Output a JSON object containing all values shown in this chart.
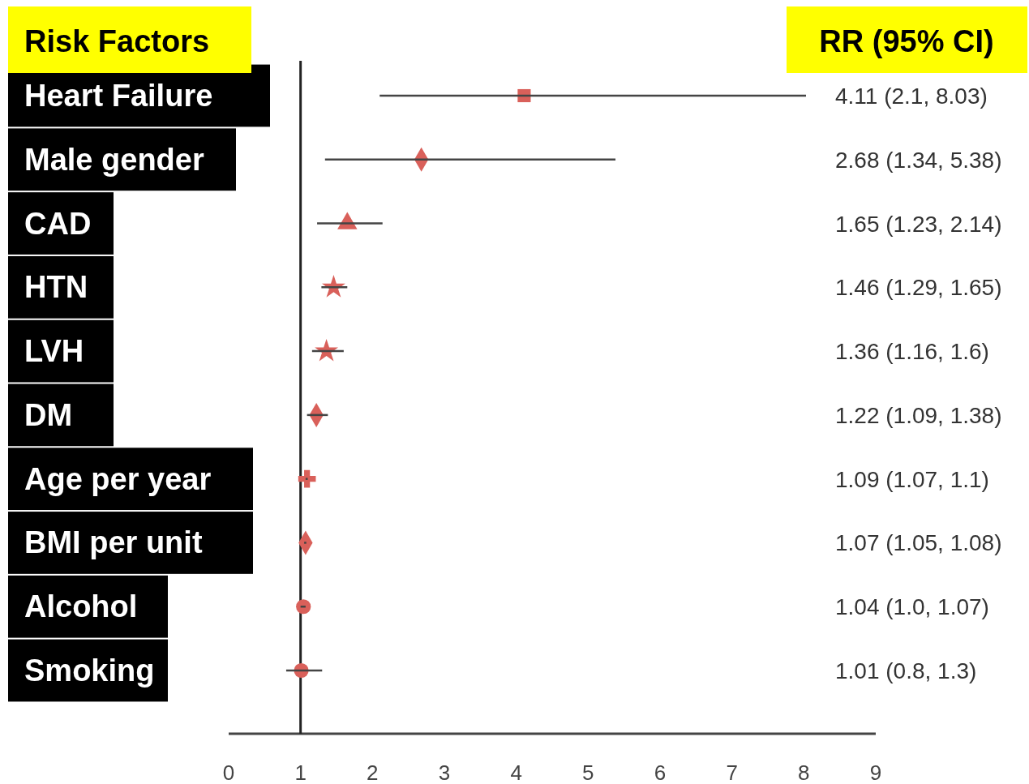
{
  "chart_data": {
    "type": "scatter",
    "orientation": "horizontal",
    "ylabel": "Risk Factors",
    "annotations": [
      "RR (95% CI)",
      "4.11 (2.1, 8.03)",
      "2.68 (1.34, 5.38)",
      "1.65 (1.23, 2.14)",
      "1.46 (1.29, 1.65)",
      "1.36 (1.16, 1.6)",
      "1.22 (1.09, 1.38)",
      "1.09 (1.07, 1.1)",
      "1.07 (1.05, 1.08)",
      "1.04 (1.0, 1.07)",
      "1.01 (0.8, 1.3)"
    ],
    "categories": [
      "Heart Failure",
      "Male gender",
      "CAD",
      "HTN",
      "LVH",
      "DM",
      "Age per year",
      "BMI per unit",
      "Alcohol",
      "Smoking"
    ],
    "series": [
      {
        "color": "#d9605a",
        "marker": "square",
        "values": [
          4.11,
          null,
          null,
          null,
          null,
          null,
          null,
          null,
          null,
          null
        ],
        "errors": [
          [
            2.1,
            8.03
          ],
          null,
          null,
          null,
          null,
          null,
          null,
          null,
          null,
          null
        ]
      },
      {
        "color": "#d9605a",
        "marker": "diamond",
        "values": [
          null,
          2.68,
          null,
          null,
          null,
          null,
          null,
          null,
          null,
          null
        ],
        "errors": [
          null,
          [
            1.34,
            5.38
          ],
          null,
          null,
          null,
          null,
          null,
          null,
          null,
          null
        ]
      },
      {
        "color": "#d9605a",
        "marker": "triangle",
        "values": [
          null,
          null,
          1.65,
          null,
          null,
          null,
          null,
          null,
          null,
          null
        ],
        "errors": [
          null,
          null,
          [
            1.23,
            2.14
          ],
          null,
          null,
          null,
          null,
          null,
          null,
          null
        ]
      },
      {
        "color": "#d9605a",
        "marker": "star",
        "values": [
          null,
          null,
          null,
          1.46,
          null,
          null,
          null,
          null,
          null,
          null
        ],
        "errors": [
          null,
          null,
          null,
          [
            1.29,
            1.65
          ],
          null,
          null,
          null,
          null,
          null,
          null
        ]
      },
      {
        "color": "#d9605a",
        "marker": "star",
        "values": [
          null,
          null,
          null,
          null,
          1.36,
          null,
          null,
          null,
          null,
          null
        ],
        "errors": [
          null,
          null,
          null,
          null,
          [
            1.16,
            1.6
          ],
          null,
          null,
          null,
          null,
          null
        ]
      },
      {
        "color": "#d9605a",
        "marker": "diamond",
        "values": [
          null,
          null,
          null,
          null,
          null,
          1.22,
          null,
          null,
          null,
          null
        ],
        "errors": [
          null,
          null,
          null,
          null,
          null,
          [
            1.09,
            1.38
          ],
          null,
          null,
          null,
          null
        ]
      },
      {
        "color": "#d9605a",
        "marker": "cross",
        "values": [
          null,
          null,
          null,
          null,
          null,
          null,
          1.09,
          null,
          null,
          null
        ],
        "errors": [
          null,
          null,
          null,
          null,
          null,
          null,
          [
            1.07,
            1.1
          ],
          null,
          null,
          null
        ]
      },
      {
        "color": "#d9605a",
        "marker": "diamond",
        "values": [
          null,
          null,
          null,
          null,
          null,
          null,
          null,
          1.07,
          null,
          null
        ],
        "errors": [
          null,
          null,
          null,
          null,
          null,
          null,
          null,
          [
            1.05,
            1.08
          ],
          null,
          null
        ]
      },
      {
        "color": "#d9605a",
        "marker": "circle",
        "values": [
          null,
          null,
          null,
          null,
          null,
          null,
          null,
          null,
          1.04,
          null
        ],
        "errors": [
          null,
          null,
          null,
          null,
          null,
          null,
          null,
          null,
          [
            1.0,
            1.07
          ],
          null
        ]
      },
      {
        "color": "#d9605a",
        "marker": "circle",
        "values": [
          null,
          null,
          null,
          null,
          null,
          null,
          null,
          null,
          null,
          1.01
        ],
        "errors": [
          null,
          null,
          null,
          null,
          null,
          null,
          null,
          null,
          null,
          [
            0.8,
            1.3
          ]
        ]
      }
    ],
    "xlim": [
      0,
      9
    ],
    "xticks": [
      0,
      1,
      2,
      3,
      4,
      5,
      6,
      7,
      8,
      9
    ],
    "ref_lines": [
      {
        "axis": "x",
        "value": 1,
        "color": "#222222"
      }
    ],
    "grid": false
  }
}
